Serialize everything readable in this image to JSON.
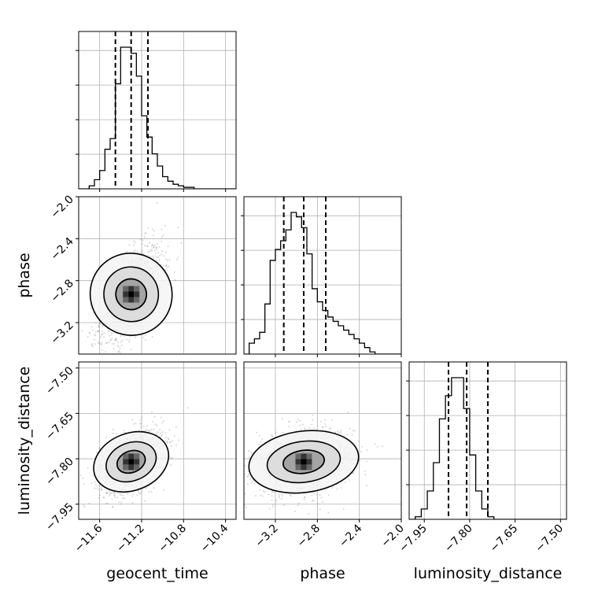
{
  "chart_data": {
    "type": "corner",
    "parameters": [
      "geocent_time",
      "phase",
      "luminosity_distance"
    ],
    "ranges": [
      [
        -11.8,
        -10.3
      ],
      [
        -3.5,
        -2.0
      ],
      [
        -8.0,
        -7.48
      ]
    ],
    "ticks": [
      [
        -11.6,
        -11.2,
        -10.8,
        -10.4
      ],
      [
        -3.2,
        -2.8,
        -2.4,
        -2.0
      ],
      [
        -7.95,
        -7.8,
        -7.65,
        -7.5
      ]
    ],
    "tick_labels": [
      [
        "−11.6",
        "−11.2",
        "−10.8",
        "−10.4"
      ],
      [
        "−3.2",
        "−2.8",
        "−2.4",
        "−2.0"
      ],
      [
        "−7.95",
        "−7.80",
        "−7.65",
        "−7.50"
      ]
    ],
    "quantiles": [
      [
        -11.45,
        -11.3,
        -11.14
      ],
      [
        -3.12,
        -2.93,
        -2.72
      ],
      [
        -7.87,
        -7.81,
        -7.74
      ]
    ],
    "histograms": [
      {
        "parameter": "geocent_time",
        "bin_start": -11.8,
        "bin_width": 0.05,
        "counts": [
          0,
          0,
          2,
          6,
          12,
          26,
          33,
          69,
          93,
          93,
          89,
          74,
          48,
          34,
          23,
          15,
          8,
          5,
          3,
          2,
          1,
          1,
          0,
          0,
          0,
          0,
          0,
          0,
          0,
          0
        ],
        "grid": true
      },
      {
        "parameter": "phase",
        "bin_start": -3.5,
        "bin_width": 0.05,
        "counts": [
          0,
          5,
          7,
          10,
          23,
          43,
          48,
          52,
          57,
          65,
          63,
          58,
          46,
          30,
          24,
          20,
          17,
          15,
          13,
          11,
          9,
          7,
          5,
          3,
          1,
          0,
          0,
          0,
          0,
          0
        ],
        "grid": true
      },
      {
        "parameter": "luminosity_distance",
        "bin_start": -8.0,
        "bin_width": 0.02,
        "counts": [
          0,
          1,
          4,
          11,
          22,
          39,
          48,
          55,
          55,
          43,
          25,
          11,
          4,
          1,
          0,
          0,
          0,
          0,
          0,
          0,
          0,
          0,
          0,
          0,
          0,
          0
        ],
        "grid": true
      }
    ],
    "scatter_panels": [
      {
        "x": "geocent_time",
        "y": "phase",
        "mean": [
          -11.3,
          -2.93
        ],
        "sd": [
          0.13,
          0.2
        ],
        "corr": 0.55,
        "contour_levels": [
          "inner",
          "middle",
          "outer"
        ]
      },
      {
        "x": "geocent_time",
        "y": "luminosity_distance",
        "mean": [
          -11.3,
          -7.81
        ],
        "sd": [
          0.13,
          0.045
        ],
        "corr": 0.4,
        "contour_levels": [
          "inner",
          "middle",
          "outer"
        ]
      },
      {
        "x": "phase",
        "y": "luminosity_distance",
        "mean": [
          -2.93,
          -7.81
        ],
        "sd": [
          0.2,
          0.045
        ],
        "corr": 0.2,
        "contour_levels": [
          "inner",
          "middle",
          "outer"
        ]
      }
    ],
    "grid": true,
    "xlabels": [
      "geocent_time",
      "phase",
      "luminosity_distance"
    ],
    "ylabels": [
      "",
      "phase",
      "luminosity_distance"
    ]
  }
}
